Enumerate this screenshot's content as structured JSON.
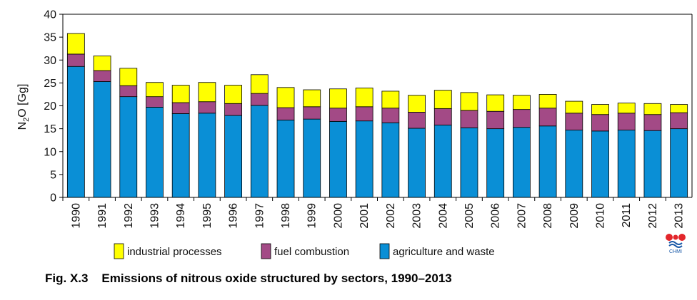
{
  "caption": {
    "fig_label": "Fig. X.3",
    "title": "Emissions of nitrous oxide structured by sectors, 1990–2013"
  },
  "logo": {
    "text": "CHMI"
  },
  "colors": {
    "agriculture": "#0a8fd6",
    "fuel": "#a34a86",
    "industrial": "#ffff00",
    "axis": "#000000"
  },
  "chart_data": {
    "type": "bar",
    "stacked": true,
    "ylabel_main": "N",
    "ylabel_sub": "2",
    "ylabel_rest": "O [Gg]",
    "ylim": [
      0,
      40
    ],
    "yticks": [
      0,
      5,
      10,
      15,
      20,
      25,
      30,
      35,
      40
    ],
    "grid": false,
    "legend_position": "bottom",
    "categories": [
      "1990",
      "1991",
      "1992",
      "1993",
      "1994",
      "1995",
      "1996",
      "1997",
      "1998",
      "1999",
      "2000",
      "2001",
      "2002",
      "2003",
      "2004",
      "2005",
      "2006",
      "2007",
      "2008",
      "2009",
      "2010",
      "2011",
      "2012",
      "2013"
    ],
    "series": [
      {
        "name": "agriculture and waste",
        "values": [
          28.6,
          25.3,
          22.0,
          19.7,
          18.3,
          18.4,
          17.9,
          20.1,
          16.9,
          17.1,
          16.6,
          16.7,
          16.3,
          15.1,
          15.8,
          15.2,
          15.0,
          15.3,
          15.6,
          14.7,
          14.5,
          14.7,
          14.6,
          15.0
        ]
      },
      {
        "name": "fuel combustion",
        "values": [
          2.7,
          2.4,
          2.4,
          2.3,
          2.4,
          2.5,
          2.6,
          2.6,
          2.7,
          2.7,
          2.9,
          3.1,
          3.2,
          3.5,
          3.6,
          3.8,
          3.8,
          3.9,
          3.9,
          3.7,
          3.6,
          3.7,
          3.5,
          3.5
        ]
      },
      {
        "name": "industrial processes",
        "values": [
          4.5,
          3.2,
          3.8,
          3.1,
          3.8,
          4.2,
          4.0,
          4.1,
          4.4,
          3.7,
          4.2,
          4.1,
          3.7,
          3.7,
          4.0,
          3.9,
          3.6,
          3.1,
          3.0,
          2.6,
          2.2,
          2.2,
          2.4,
          1.8
        ]
      }
    ],
    "legend_order": [
      2,
      1,
      0
    ]
  }
}
